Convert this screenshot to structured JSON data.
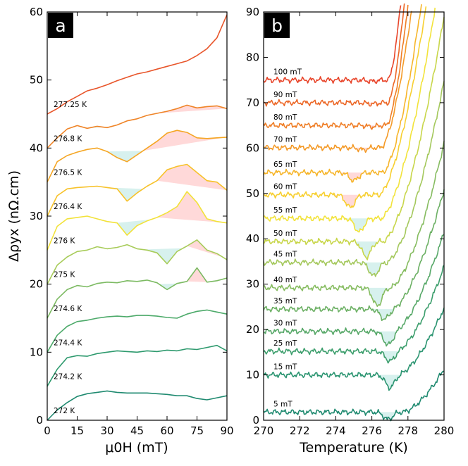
{
  "chart_data": [
    {
      "panel": "a",
      "type": "line",
      "xlabel": "μ0H (mT)",
      "ylabel": "Δρyx (nΩ.cm)",
      "xlim": [
        0,
        90
      ],
      "ylim": [
        0,
        60
      ],
      "xticks": [
        "0",
        "15",
        "30",
        "45",
        "60",
        "75",
        "90"
      ],
      "yticks": [
        "0",
        "10",
        "20",
        "30",
        "40",
        "50",
        "60"
      ],
      "series": [
        {
          "name": "272 K",
          "color": "#1f8a70",
          "x": [
            0,
            5,
            10,
            15,
            20,
            25,
            30,
            35,
            40,
            45,
            50,
            55,
            60,
            65,
            70,
            75,
            80,
            85,
            90
          ],
          "values": [
            0,
            1.5,
            2.6,
            3.5,
            3.9,
            4.1,
            4.3,
            4.1,
            4.0,
            4.0,
            4.0,
            3.9,
            3.8,
            3.6,
            3.6,
            3.2,
            3.0,
            3.3,
            3.6
          ]
        },
        {
          "name": "274.2 K",
          "color": "#2e9a6e",
          "x": [
            0,
            5,
            10,
            15,
            20,
            25,
            30,
            35,
            40,
            45,
            50,
            55,
            60,
            65,
            70,
            75,
            80,
            85,
            90
          ],
          "values": [
            5,
            7.5,
            9.2,
            9.5,
            9.4,
            9.8,
            10.0,
            10.2,
            10.1,
            10.0,
            10.2,
            10.1,
            10.3,
            10.2,
            10.5,
            10.4,
            10.7,
            11.0,
            10.2
          ]
        },
        {
          "name": "274.4 K",
          "color": "#4daa6a",
          "x": [
            0,
            5,
            10,
            15,
            20,
            25,
            30,
            35,
            40,
            45,
            50,
            55,
            60,
            65,
            70,
            75,
            80,
            85,
            90
          ],
          "values": [
            10,
            12.5,
            13.8,
            14.5,
            14.7,
            15.0,
            15.2,
            15.3,
            15.2,
            15.4,
            15.4,
            15.3,
            15.1,
            15.0,
            15.6,
            16.0,
            16.2,
            15.9,
            15.6
          ]
        },
        {
          "name": "274.6 K",
          "color": "#7cba62",
          "x": [
            0,
            5,
            10,
            15,
            20,
            25,
            30,
            35,
            40,
            45,
            50,
            55,
            60,
            65,
            70,
            75,
            80,
            85,
            90
          ],
          "values": [
            15,
            17.8,
            19.2,
            19.8,
            19.6,
            20.1,
            20.3,
            20.2,
            20.5,
            20.4,
            20.6,
            20.2,
            19.2,
            20.1,
            20.4,
            22.4,
            20.3,
            20.5,
            20.9
          ]
        },
        {
          "name": "275 K",
          "color": "#a8cc5a",
          "x": [
            0,
            5,
            10,
            15,
            20,
            25,
            30,
            35,
            40,
            45,
            50,
            55,
            60,
            65,
            70,
            75,
            80,
            85,
            90
          ],
          "values": [
            20,
            22.8,
            24.0,
            24.8,
            25.0,
            25.5,
            25.2,
            25.4,
            25.8,
            25.2,
            25.0,
            24.6,
            23.0,
            24.8,
            25.6,
            26.5,
            25.0,
            24.5,
            23.6
          ]
        },
        {
          "name": "276 K",
          "color": "#f2e23a",
          "x": [
            0,
            5,
            10,
            15,
            20,
            25,
            30,
            35,
            40,
            45,
            50,
            55,
            60,
            65,
            70,
            75,
            80,
            85,
            90
          ],
          "values": [
            25,
            28.5,
            29.6,
            29.8,
            30.0,
            29.6,
            29.2,
            29.0,
            27.2,
            28.6,
            29.3,
            29.8,
            30.5,
            31.4,
            33.6,
            32.0,
            29.6,
            29.2,
            29.0
          ]
        },
        {
          "name": "276.4 K",
          "color": "#f7c22a",
          "x": [
            0,
            5,
            10,
            15,
            20,
            25,
            30,
            35,
            40,
            45,
            50,
            55,
            60,
            65,
            70,
            75,
            80,
            85,
            90
          ],
          "values": [
            30,
            33.0,
            34.0,
            34.2,
            34.3,
            34.4,
            34.2,
            34.0,
            32.2,
            33.4,
            34.4,
            35.2,
            36.8,
            37.3,
            37.6,
            36.4,
            35.2,
            35.0,
            33.8
          ]
        },
        {
          "name": "276.5 K",
          "color": "#f5a623",
          "x": [
            0,
            5,
            10,
            15,
            20,
            25,
            30,
            35,
            40,
            45,
            50,
            55,
            60,
            65,
            70,
            75,
            80,
            85,
            90
          ],
          "values": [
            35,
            38.0,
            38.9,
            39.4,
            39.8,
            40.0,
            39.5,
            38.6,
            38.0,
            39.0,
            40.0,
            41.0,
            42.2,
            42.6,
            42.3,
            41.5,
            41.4,
            41.5,
            41.6
          ]
        },
        {
          "name": "276.8 K",
          "color": "#ef8427",
          "x": [
            0,
            5,
            10,
            15,
            20,
            25,
            30,
            35,
            40,
            45,
            50,
            55,
            60,
            65,
            70,
            75,
            80,
            85,
            90
          ],
          "values": [
            40,
            41.5,
            42.8,
            43.3,
            42.9,
            43.2,
            43.0,
            43.4,
            44.0,
            44.3,
            44.8,
            45.1,
            45.4,
            45.8,
            46.3,
            45.9,
            46.1,
            46.2,
            45.8
          ]
        },
        {
          "name": "277.25 K",
          "color": "#e8552a",
          "x": [
            0,
            5,
            10,
            15,
            20,
            25,
            30,
            35,
            40,
            45,
            50,
            55,
            60,
            65,
            70,
            75,
            80,
            85,
            90
          ],
          "values": [
            45,
            45.8,
            46.8,
            47.6,
            48.4,
            48.8,
            49.3,
            49.9,
            50.4,
            50.9,
            51.2,
            51.6,
            52.0,
            52.4,
            52.8,
            53.6,
            54.6,
            56.2,
            59.6
          ]
        }
      ],
      "shading": [
        {
          "series": 7,
          "x0": 30,
          "x1": 48,
          "color": "#d7f1ee"
        },
        {
          "series": 7,
          "x0": 48,
          "x1": 90,
          "color": "#ffd9d9"
        },
        {
          "series": 6,
          "x0": 30,
          "x1": 48,
          "color": "#d7f1ee"
        },
        {
          "series": 6,
          "x0": 55,
          "x1": 90,
          "color": "#ffd9d9"
        },
        {
          "series": 5,
          "x0": 35,
          "x1": 52,
          "color": "#d7f1ee"
        },
        {
          "series": 5,
          "x0": 55,
          "x1": 90,
          "color": "#ffd9d9"
        },
        {
          "series": 4,
          "x0": 48,
          "x1": 68,
          "color": "#d7f1ee"
        },
        {
          "series": 4,
          "x0": 70,
          "x1": 88,
          "color": "#ffd9d9"
        },
        {
          "series": 3,
          "x0": 56,
          "x1": 65,
          "color": "#d7f1ee"
        },
        {
          "series": 3,
          "x0": 70,
          "x1": 80,
          "color": "#ffd9d9"
        },
        {
          "series": 8,
          "x0": 20,
          "x1": 32,
          "color": "#d7f1ee"
        },
        {
          "series": 8,
          "x0": 55,
          "x1": 90,
          "color": "#ffd9d9"
        }
      ]
    },
    {
      "panel": "b",
      "type": "line",
      "xlabel": "Temperature (K)",
      "ylabel": "",
      "xlim": [
        270,
        280
      ],
      "ylim": [
        0,
        90
      ],
      "xticks": [
        "270",
        "272",
        "274",
        "276",
        "278",
        "280"
      ],
      "yticks": [
        "0",
        "10",
        "20",
        "30",
        "40",
        "50",
        "60",
        "70",
        "80",
        "90"
      ],
      "series": [
        {
          "name": "5 mT",
          "color": "#1f8a70",
          "base": 1.8,
          "dip": 276.9,
          "depth": 1.6,
          "rise": 277.7,
          "rate": 2.5
        },
        {
          "name": "15 mT",
          "color": "#2a9470",
          "base": 10.0,
          "dip": 277.0,
          "depth": 2.8,
          "rise": 277.4,
          "rate": 3.2
        },
        {
          "name": "25 mT",
          "color": "#3c9e6c",
          "base": 15.2,
          "dip": 277.0,
          "depth": 2.2,
          "rise": 277.3,
          "rate": 3.8
        },
        {
          "name": "30 mT",
          "color": "#57a868",
          "base": 19.6,
          "dip": 276.9,
          "depth": 3.0,
          "rise": 277.2,
          "rate": 4.2
        },
        {
          "name": "35 mT",
          "color": "#6cb064",
          "base": 24.5,
          "dip": 276.7,
          "depth": 2.2,
          "rise": 277.1,
          "rate": 4.8
        },
        {
          "name": "40 mT",
          "color": "#86bc60",
          "base": 29.2,
          "dip": 276.3,
          "depth": 4.0,
          "rise": 277.0,
          "rate": 5.5
        },
        {
          "name": "45 mT",
          "color": "#a4c85c",
          "base": 34.8,
          "dip": 276.1,
          "depth": 3.0,
          "rise": 276.8,
          "rate": 6.2
        },
        {
          "name": "50 mT",
          "color": "#c8d64a",
          "base": 39.4,
          "dip": 275.7,
          "depth": 3.4,
          "rise": 276.6,
          "rate": 7.0
        },
        {
          "name": "55 mT",
          "color": "#f2e33a",
          "base": 44.5,
          "dip": 275.3,
          "depth": 3.0,
          "rise": 276.5,
          "rate": 8.0
        },
        {
          "name": "60 mT",
          "color": "#f7cf30",
          "base": 49.7,
          "dip": 274.8,
          "depth": 2.8,
          "rise": 276.4,
          "rate": 9.0
        },
        {
          "name": "65 mT",
          "color": "#f6b52a",
          "base": 54.6,
          "dip": 275.0,
          "depth": 1.8,
          "rise": 276.6,
          "rate": 11.0
        },
        {
          "name": "70 mT",
          "color": "#f49a27",
          "base": 60.1,
          "dip": 275.5,
          "depth": 0.5,
          "rise": 276.5,
          "rate": 13.0
        },
        {
          "name": "80 mT",
          "color": "#ef7e26",
          "base": 65.0,
          "dip": 276.0,
          "depth": 0.3,
          "rise": 276.8,
          "rate": 20.0
        },
        {
          "name": "90 mT",
          "color": "#ec6726",
          "base": 70.0,
          "dip": 276.0,
          "depth": 0.3,
          "rise": 276.9,
          "rate": 26.0
        },
        {
          "name": "100 mT",
          "color": "#e8452a",
          "base": 75.0,
          "dip": 276.0,
          "depth": 0.3,
          "rise": 276.9,
          "rate": 30.0
        }
      ]
    }
  ],
  "panel_labels": {
    "a": "a",
    "b": "b"
  }
}
